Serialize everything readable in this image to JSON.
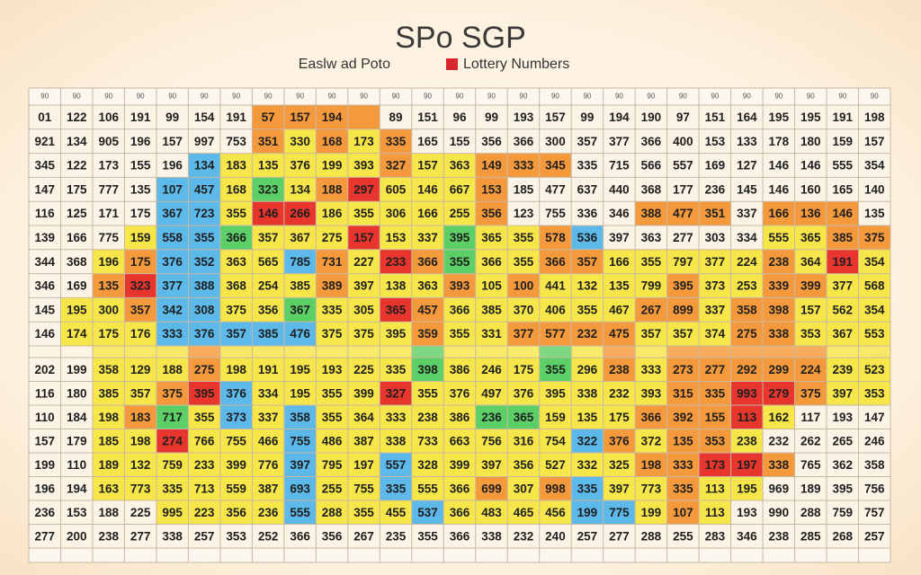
{
  "header": {
    "title": "SPo SGP",
    "legend_left": "Easlw ad Poto",
    "legend_right": "Lottery Numbers"
  },
  "table": {
    "header": [
      "90",
      "90",
      "90",
      "90",
      "90",
      "90",
      "90",
      "90",
      "90",
      "90",
      "90",
      "90",
      "90",
      "90",
      "90",
      "90",
      "90",
      "90",
      "90",
      "90",
      "90",
      "90",
      "90",
      "90",
      "90",
      "90",
      "90"
    ],
    "rows": [
      [
        "01",
        "122",
        "106",
        "191",
        "99",
        "154",
        "191",
        "57",
        "157",
        "194",
        null,
        "89",
        "151",
        "96",
        "99",
        "193",
        "157",
        "99",
        "194",
        "190",
        "97",
        "151",
        "164",
        "195",
        "195",
        "191",
        "198"
      ],
      [
        "921",
        "134",
        "905",
        "196",
        "157",
        "997",
        "753",
        "351",
        "330",
        "168",
        "173",
        "335",
        "165",
        "155",
        "356",
        "366",
        "300",
        "357",
        "377",
        "366",
        "400",
        "153",
        "133",
        "178",
        "180",
        "159",
        "157"
      ],
      [
        "345",
        "122",
        "173",
        "155",
        "196",
        "134",
        "183",
        "135",
        "376",
        "199",
        "393",
        "327",
        "157",
        "363",
        "149",
        "333",
        "345",
        "335",
        "715",
        "566",
        "557",
        "169",
        "127",
        "146",
        "146",
        "555",
        "354"
      ],
      [
        "147",
        "175",
        "777",
        "135",
        "107",
        "457",
        "168",
        "323",
        "134",
        "188",
        "297",
        "605",
        "146",
        "667",
        "153",
        "185",
        "477",
        "637",
        "440",
        "368",
        "177",
        "236",
        "145",
        "146",
        "160",
        "165",
        "140"
      ],
      [
        "116",
        "125",
        "171",
        "175",
        "367",
        "723",
        "355",
        "146",
        "266",
        "186",
        "355",
        "306",
        "166",
        "255",
        "356",
        "123",
        "755",
        "336",
        "346",
        "388",
        "477",
        "351",
        "337",
        "166",
        "136",
        "146",
        "135"
      ],
      [
        "139",
        "166",
        "775",
        "159",
        "558",
        "355",
        "366",
        "357",
        "367",
        "275",
        "157",
        "153",
        "337",
        "395",
        "365",
        "355",
        "578",
        "536",
        "397",
        "363",
        "277",
        "303",
        "334",
        "555",
        "365",
        "385",
        "375"
      ],
      [
        "344",
        "368",
        "196",
        "175",
        "376",
        "352",
        "363",
        "565",
        "785",
        "731",
        "227",
        "233",
        "366",
        "355",
        "366",
        "355",
        "366",
        "357",
        "166",
        "355",
        "797",
        "377",
        "224",
        "238",
        "364",
        "191",
        "354"
      ],
      [
        "346",
        "169",
        "135",
        "323",
        "377",
        "388",
        "368",
        "254",
        "385",
        "389",
        "397",
        "138",
        "363",
        "393",
        "105",
        "100",
        "441",
        "132",
        "135",
        "799",
        "395",
        "373",
        "253",
        "339",
        "399",
        "377",
        "568"
      ],
      [
        "145",
        "195",
        "300",
        "357",
        "342",
        "308",
        "375",
        "356",
        "367",
        "335",
        "305",
        "365",
        "457",
        "366",
        "385",
        "370",
        "406",
        "355",
        "467",
        "267",
        "899",
        "337",
        "358",
        "398",
        "157",
        "562",
        "354"
      ],
      [
        "146",
        "174",
        "175",
        "176",
        "333",
        "376",
        "357",
        "385",
        "476",
        "375",
        "375",
        "395",
        "359",
        "355",
        "331",
        "377",
        "577",
        "232",
        "475",
        "357",
        "357",
        "374",
        "275",
        "338",
        "353",
        "367",
        "553"
      ],
      [
        "202",
        "199",
        "358",
        "129",
        "188",
        "275",
        "198",
        "191",
        "195",
        "193",
        "225",
        "335",
        "398",
        "386",
        "246",
        "175",
        "355",
        "296",
        "238",
        "333",
        "273",
        "277",
        "292",
        "299",
        "224",
        "239",
        "523"
      ],
      [
        "116",
        "180",
        "385",
        "357",
        "375",
        "395",
        "376",
        "334",
        "195",
        "355",
        "399",
        "327",
        "355",
        "376",
        "497",
        "376",
        "395",
        "338",
        "232",
        "393",
        "315",
        "335",
        "993",
        "279",
        "375",
        "397",
        "353"
      ],
      [
        "110",
        "184",
        "198",
        "183",
        "717",
        "355",
        "373",
        "337",
        "358",
        "355",
        "364",
        "333",
        "238",
        "386",
        "236",
        "365",
        "159",
        "135",
        "175",
        "366",
        "392",
        "155",
        "113",
        "162",
        "117",
        "193",
        "147"
      ],
      [
        "157",
        "179",
        "185",
        "198",
        "274",
        "766",
        "755",
        "466",
        "755",
        "486",
        "387",
        "338",
        "733",
        "663",
        "756",
        "316",
        "754",
        "322",
        "376",
        "372",
        "135",
        "353",
        "238",
        "232",
        "262",
        "265",
        "246"
      ],
      [
        "199",
        "110",
        "189",
        "132",
        "759",
        "233",
        "399",
        "776",
        "397",
        "795",
        "197",
        "557",
        "328",
        "399",
        "397",
        "356",
        "527",
        "332",
        "325",
        "198",
        "333",
        "173",
        "197",
        "338",
        "765",
        "362",
        "358"
      ],
      [
        "196",
        "194",
        "163",
        "773",
        "335",
        "713",
        "559",
        "387",
        "693",
        "255",
        "755",
        "335",
        "555",
        "366",
        "699",
        "307",
        "998",
        "335",
        "397",
        "773",
        "335",
        "113",
        "195",
        "969",
        "189",
        "395",
        "756"
      ],
      [
        "236",
        "153",
        "188",
        "225",
        "995",
        "223",
        "356",
        "236",
        "555",
        "288",
        "355",
        "455",
        "537",
        "366",
        "483",
        "465",
        "456",
        "199",
        "775",
        "199",
        "107",
        "113",
        "193",
        "990",
        "288",
        "759",
        "757"
      ],
      [
        "277",
        "200",
        "238",
        "277",
        "338",
        "257",
        "353",
        "252",
        "366",
        "356",
        "267",
        "235",
        "355",
        "366",
        "338",
        "232",
        "240",
        "257",
        "277",
        "288",
        "255",
        "283",
        "346",
        "238",
        "285",
        "268",
        "257"
      ]
    ]
  }
}
